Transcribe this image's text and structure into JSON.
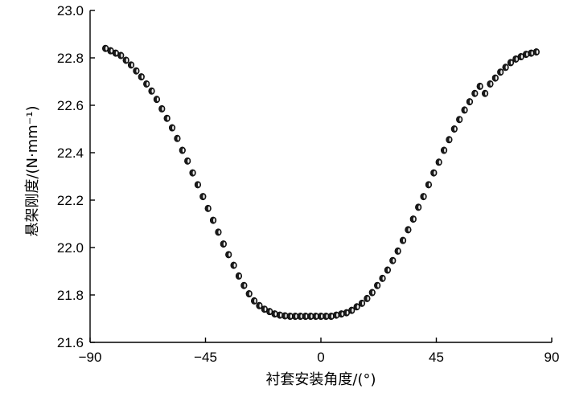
{
  "chart_data": {
    "type": "scatter",
    "xlabel": "衬套安装角度/(°)",
    "ylabel": "悬架刚度/(N·mm⁻¹)",
    "xlim": [
      -90,
      90
    ],
    "ylim": [
      21.6,
      23.0
    ],
    "xticks": [
      "−90",
      "−45",
      "0",
      "45",
      "90"
    ],
    "yticks": [
      "21.6",
      "21.8",
      "22.0",
      "22.2",
      "22.4",
      "22.6",
      "22.8",
      "23.0"
    ],
    "marker_color": "#1a1a1a",
    "grid": false,
    "series": [
      {
        "x": [
          -84,
          -82,
          -80,
          -78,
          -76,
          -74,
          -72,
          -70,
          -68,
          -66,
          -64,
          -62,
          -60,
          -58,
          -56,
          -54,
          -52,
          -50,
          -48,
          -46,
          -44,
          -42,
          -40,
          -38,
          -36,
          -34,
          -32,
          -30,
          -28,
          -26,
          -24,
          -22,
          -20,
          -18,
          -16,
          -14,
          -12,
          -10,
          -8,
          -6,
          -4,
          -2,
          0,
          2,
          4,
          6,
          8,
          10,
          12,
          14,
          16,
          18,
          20,
          22,
          24,
          26,
          28,
          30,
          32,
          34,
          36,
          38,
          40,
          42,
          44,
          46,
          48,
          50,
          52,
          54,
          56,
          58,
          60,
          62,
          64,
          66,
          68,
          70,
          72,
          74,
          76,
          78,
          80,
          82,
          84
        ],
        "y": [
          22.84,
          22.83,
          22.82,
          22.81,
          22.79,
          22.77,
          22.745,
          22.72,
          22.69,
          22.66,
          22.625,
          22.585,
          22.545,
          22.505,
          22.46,
          22.41,
          22.365,
          22.315,
          22.265,
          22.215,
          22.165,
          22.115,
          22.065,
          22.015,
          21.97,
          21.925,
          21.88,
          21.84,
          21.805,
          21.775,
          21.755,
          21.74,
          21.73,
          21.72,
          21.715,
          21.712,
          21.71,
          21.71,
          21.71,
          21.71,
          21.71,
          21.71,
          21.71,
          21.71,
          21.71,
          21.715,
          21.72,
          21.725,
          21.735,
          21.75,
          21.765,
          21.785,
          21.81,
          21.84,
          21.87,
          21.905,
          21.945,
          21.985,
          22.03,
          22.075,
          22.12,
          22.17,
          22.215,
          22.265,
          22.315,
          22.36,
          22.41,
          22.455,
          22.5,
          22.54,
          22.58,
          22.615,
          22.65,
          22.68,
          22.65,
          22.69,
          22.715,
          22.74,
          22.76,
          22.78,
          22.795,
          22.805,
          22.815,
          22.82,
          22.825
        ]
      }
    ]
  }
}
